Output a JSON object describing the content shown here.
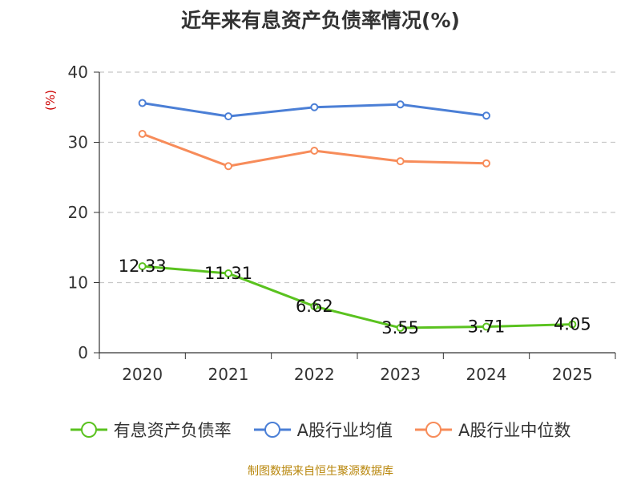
{
  "chart_data": {
    "type": "line",
    "title": "近年来有息资产负债率情况(%)",
    "ylabel": "(%)",
    "xlabel": "",
    "categories": [
      "2020",
      "2021",
      "2022",
      "2023",
      "2024",
      "2025"
    ],
    "ylim": [
      0,
      40
    ],
    "yticks": [
      0,
      10,
      20,
      30,
      40
    ],
    "grid": true,
    "series": [
      {
        "name": "有息资产负债率",
        "color": "#5ac21f",
        "values": [
          12.33,
          11.31,
          6.62,
          3.55,
          3.71,
          4.05
        ],
        "data_labels": [
          "12.33",
          "11.31",
          "6.62",
          "3.55",
          "3.71",
          "4.05"
        ]
      },
      {
        "name": "A股行业均值",
        "color": "#4b7fd6",
        "values": [
          35.6,
          33.7,
          35.0,
          35.4,
          33.8,
          null
        ]
      },
      {
        "name": "A股行业中位数",
        "color": "#f78c5a",
        "values": [
          31.2,
          26.6,
          28.8,
          27.3,
          27.0,
          null
        ]
      }
    ],
    "legend_position": "bottom",
    "source": "制图数据来自恒生聚源数据库"
  }
}
